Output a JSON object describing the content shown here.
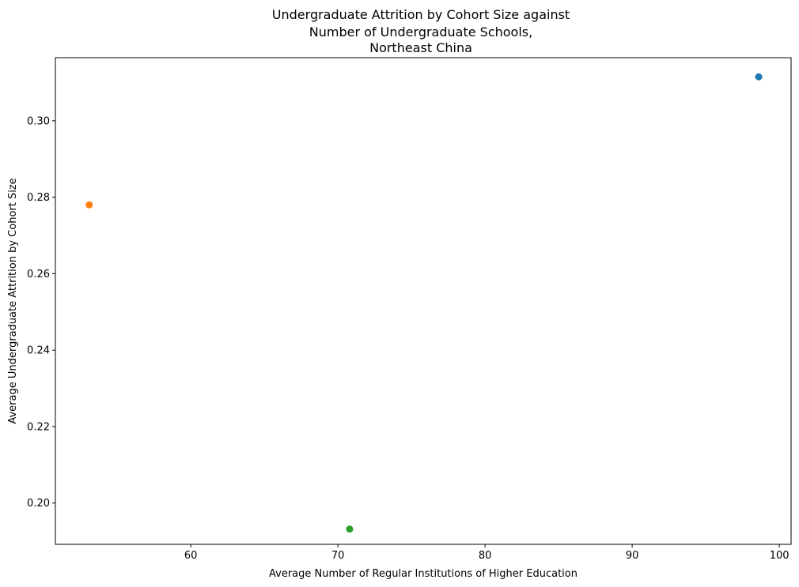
{
  "chart_data": {
    "type": "scatter",
    "title_lines": [
      "Undergraduate Attrition by Cohort Size against",
      "Number of Undergraduate Schools,",
      "Northeast China"
    ],
    "xlabel": "Average Number of Regular Institutions of Higher Education",
    "ylabel": "Average Undergraduate Attrition by Cohort Size",
    "xlim": [
      50.8,
      100.8
    ],
    "ylim": [
      0.1892,
      0.3165
    ],
    "x_ticks": [
      60,
      70,
      80,
      90,
      100
    ],
    "x_tick_labels": [
      "60",
      "70",
      "80",
      "90",
      "100"
    ],
    "y_ticks": [
      0.2,
      0.22,
      0.24,
      0.26,
      0.28,
      0.3
    ],
    "y_tick_labels": [
      "0.20",
      "0.22",
      "0.24",
      "0.26",
      "0.28",
      "0.30"
    ],
    "grid": false,
    "points": [
      {
        "x": 98.6,
        "y": 0.3115,
        "color": "#1f77b4"
      },
      {
        "x": 53.1,
        "y": 0.278,
        "color": "#ff7f0e"
      },
      {
        "x": 70.8,
        "y": 0.1932,
        "color": "#2ca02c"
      }
    ]
  }
}
